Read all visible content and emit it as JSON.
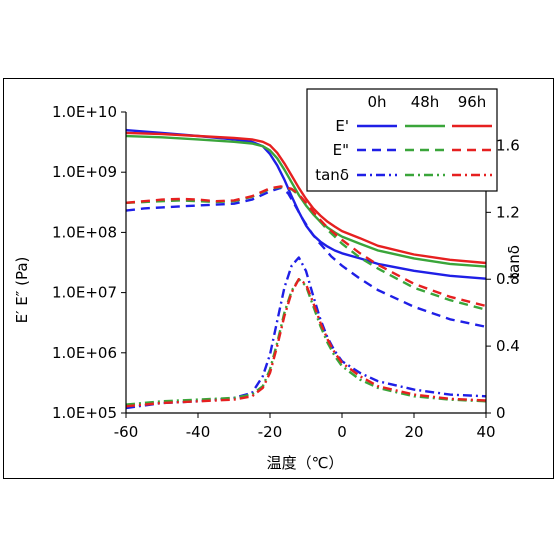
{
  "chart_data": {
    "type": "line",
    "title": "",
    "xlabel": "温度（℃）",
    "ylabel_left": "E′ E″ (Pa)",
    "ylabel_right": "tanδ",
    "xlim": [
      -60,
      40
    ],
    "ylim_left": [
      100000,
      10000000000
    ],
    "ylim_left_scale": "log",
    "ylim_right": [
      0,
      1.8
    ],
    "x_ticks": [
      "-60",
      "-40",
      "-20",
      "0",
      "20",
      "40"
    ],
    "y_left_ticks": [
      "1.0E+05",
      "1.0E+06",
      "1.0E+07",
      "1.0E+08",
      "1.0E+09",
      "1.0E+10"
    ],
    "y_right_ticks": [
      "0",
      "0.4",
      "0.8",
      "1.2",
      "1.6"
    ],
    "legend": {
      "placement": "top-right",
      "columns": [
        "0h",
        "48h",
        "96h"
      ],
      "rows": [
        "E'",
        "E\"",
        "tanδ"
      ]
    },
    "colors": {
      "0h": "#1f1fe6",
      "48h": "#3aa53a",
      "96h": "#e62020"
    },
    "series": [
      {
        "name": "E' 0h",
        "group": "0h",
        "kind": "E'",
        "axis": "left",
        "style": "solid",
        "points": [
          [
            -60,
            5000000000.0
          ],
          [
            -50,
            4500000000.0
          ],
          [
            -40,
            4000000000.0
          ],
          [
            -30,
            3500000000.0
          ],
          [
            -25,
            3200000000.0
          ],
          [
            -22,
            2700000000.0
          ],
          [
            -20,
            2000000000.0
          ],
          [
            -18,
            1300000000.0
          ],
          [
            -16,
            750000000.0
          ],
          [
            -14,
            400000000.0
          ],
          [
            -12,
            220000000.0
          ],
          [
            -10,
            130000000.0
          ],
          [
            -8,
            90000000.0
          ],
          [
            -6,
            70000000.0
          ],
          [
            -4,
            58000000.0
          ],
          [
            -2,
            50000000.0
          ],
          [
            0,
            45000000.0
          ],
          [
            5,
            37000000.0
          ],
          [
            10,
            30000000.0
          ],
          [
            20,
            23000000.0
          ],
          [
            30,
            19000000.0
          ],
          [
            40,
            17000000.0
          ]
        ]
      },
      {
        "name": "E' 48h",
        "group": "48h",
        "kind": "E'",
        "axis": "left",
        "style": "solid",
        "points": [
          [
            -60,
            4000000000.0
          ],
          [
            -50,
            3800000000.0
          ],
          [
            -40,
            3500000000.0
          ],
          [
            -30,
            3200000000.0
          ],
          [
            -25,
            3000000000.0
          ],
          [
            -22,
            2700000000.0
          ],
          [
            -20,
            2300000000.0
          ],
          [
            -18,
            1700000000.0
          ],
          [
            -16,
            1100000000.0
          ],
          [
            -14,
            680000000.0
          ],
          [
            -12,
            420000000.0
          ],
          [
            -10,
            280000000.0
          ],
          [
            -8,
            200000000.0
          ],
          [
            -6,
            150000000.0
          ],
          [
            -4,
            120000000.0
          ],
          [
            -2,
            100000000.0
          ],
          [
            0,
            85000000.0
          ],
          [
            5,
            65000000.0
          ],
          [
            10,
            50000000.0
          ],
          [
            20,
            37000000.0
          ],
          [
            30,
            30000000.0
          ],
          [
            40,
            27000000.0
          ]
        ]
      },
      {
        "name": "E' 96h",
        "group": "96h",
        "kind": "E'",
        "axis": "left",
        "style": "solid",
        "points": [
          [
            -60,
            4500000000.0
          ],
          [
            -50,
            4300000000.0
          ],
          [
            -40,
            4000000000.0
          ],
          [
            -30,
            3700000000.0
          ],
          [
            -25,
            3500000000.0
          ],
          [
            -22,
            3200000000.0
          ],
          [
            -20,
            2800000000.0
          ],
          [
            -18,
            2100000000.0
          ],
          [
            -16,
            1400000000.0
          ],
          [
            -14,
            880000000.0
          ],
          [
            -12,
            550000000.0
          ],
          [
            -10,
            360000000.0
          ],
          [
            -8,
            250000000.0
          ],
          [
            -6,
            190000000.0
          ],
          [
            -4,
            150000000.0
          ],
          [
            -2,
            125000000.0
          ],
          [
            0,
            105000000.0
          ],
          [
            5,
            80000000.0
          ],
          [
            10,
            60000000.0
          ],
          [
            20,
            43000000.0
          ],
          [
            30,
            35000000.0
          ],
          [
            40,
            31000000.0
          ]
        ]
      },
      {
        "name": "E\" 0h",
        "group": "0h",
        "kind": "E\"",
        "axis": "left",
        "style": "dashed",
        "points": [
          [
            -60,
            230000000.0
          ],
          [
            -55,
            250000000.0
          ],
          [
            -50,
            260000000.0
          ],
          [
            -45,
            270000000.0
          ],
          [
            -40,
            280000000.0
          ],
          [
            -35,
            290000000.0
          ],
          [
            -30,
            300000000.0
          ],
          [
            -25,
            350000000.0
          ],
          [
            -20,
            480000000.0
          ],
          [
            -17,
            550000000.0
          ],
          [
            -15,
            450000000.0
          ],
          [
            -13,
            280000000.0
          ],
          [
            -11,
            170000000.0
          ],
          [
            -9,
            110000000.0
          ],
          [
            -7,
            75000000.0
          ],
          [
            -5,
            55000000.0
          ],
          [
            -3,
            40000000.0
          ],
          [
            0,
            28000000.0
          ],
          [
            5,
            17000000.0
          ],
          [
            10,
            11000000.0
          ],
          [
            20,
            5800000.0
          ],
          [
            30,
            3600000.0
          ],
          [
            40,
            2700000.0
          ]
        ]
      },
      {
        "name": "E\" 48h",
        "group": "48h",
        "kind": "E\"",
        "axis": "left",
        "style": "dashed",
        "points": [
          [
            -60,
            310000000.0
          ],
          [
            -55,
            320000000.0
          ],
          [
            -50,
            330000000.0
          ],
          [
            -45,
            340000000.0
          ],
          [
            -40,
            330000000.0
          ],
          [
            -35,
            320000000.0
          ],
          [
            -30,
            330000000.0
          ],
          [
            -25,
            390000000.0
          ],
          [
            -20,
            530000000.0
          ],
          [
            -17,
            570000000.0
          ],
          [
            -14,
            520000000.0
          ],
          [
            -12,
            420000000.0
          ],
          [
            -10,
            300000000.0
          ],
          [
            -8,
            210000000.0
          ],
          [
            -6,
            150000000.0
          ],
          [
            -4,
            110000000.0
          ],
          [
            -2,
            85000000.0
          ],
          [
            0,
            65000000.0
          ],
          [
            5,
            38000000.0
          ],
          [
            10,
            25000000.0
          ],
          [
            20,
            12000000.0
          ],
          [
            30,
            7500000.0
          ],
          [
            40,
            5200000.0
          ]
        ]
      },
      {
        "name": "E\" 96h",
        "group": "96h",
        "kind": "E\"",
        "axis": "left",
        "style": "dashed",
        "points": [
          [
            -60,
            310000000.0
          ],
          [
            -55,
            330000000.0
          ],
          [
            -50,
            350000000.0
          ],
          [
            -45,
            360000000.0
          ],
          [
            -40,
            350000000.0
          ],
          [
            -35,
            330000000.0
          ],
          [
            -30,
            340000000.0
          ],
          [
            -25,
            400000000.0
          ],
          [
            -20,
            540000000.0
          ],
          [
            -17,
            580000000.0
          ],
          [
            -14,
            530000000.0
          ],
          [
            -12,
            430000000.0
          ],
          [
            -10,
            310000000.0
          ],
          [
            -8,
            220000000.0
          ],
          [
            -6,
            160000000.0
          ],
          [
            -4,
            120000000.0
          ],
          [
            -2,
            95000000.0
          ],
          [
            0,
            75000000.0
          ],
          [
            5,
            45000000.0
          ],
          [
            10,
            29000000.0
          ],
          [
            20,
            14000000.0
          ],
          [
            30,
            8500000.0
          ],
          [
            40,
            6000000.0
          ]
        ]
      },
      {
        "name": "tanδ 0h",
        "group": "0h",
        "kind": "tanδ",
        "axis": "right",
        "style": "dashdot",
        "points": [
          [
            -60,
            0.03
          ],
          [
            -50,
            0.06
          ],
          [
            -40,
            0.07
          ],
          [
            -30,
            0.09
          ],
          [
            -25,
            0.12
          ],
          [
            -22,
            0.22
          ],
          [
            -20,
            0.35
          ],
          [
            -18,
            0.55
          ],
          [
            -16,
            0.75
          ],
          [
            -14,
            0.88
          ],
          [
            -12,
            0.93
          ],
          [
            -10,
            0.85
          ],
          [
            -8,
            0.7
          ],
          [
            -6,
            0.56
          ],
          [
            -4,
            0.45
          ],
          [
            -2,
            0.37
          ],
          [
            0,
            0.31
          ],
          [
            5,
            0.24
          ],
          [
            10,
            0.19
          ],
          [
            20,
            0.14
          ],
          [
            30,
            0.11
          ],
          [
            40,
            0.1
          ]
        ]
      },
      {
        "name": "tanδ 48h",
        "group": "48h",
        "kind": "tanδ",
        "axis": "right",
        "style": "dashdot",
        "points": [
          [
            -60,
            0.05
          ],
          [
            -50,
            0.07
          ],
          [
            -40,
            0.08
          ],
          [
            -30,
            0.09
          ],
          [
            -25,
            0.11
          ],
          [
            -22,
            0.16
          ],
          [
            -20,
            0.26
          ],
          [
            -18,
            0.42
          ],
          [
            -16,
            0.6
          ],
          [
            -14,
            0.73
          ],
          [
            -12,
            0.8
          ],
          [
            -10,
            0.76
          ],
          [
            -8,
            0.64
          ],
          [
            -6,
            0.52
          ],
          [
            -4,
            0.42
          ],
          [
            -2,
            0.34
          ],
          [
            0,
            0.28
          ],
          [
            5,
            0.2
          ],
          [
            10,
            0.15
          ],
          [
            20,
            0.1
          ],
          [
            30,
            0.08
          ],
          [
            40,
            0.07
          ]
        ]
      },
      {
        "name": "tanδ 96h",
        "group": "96h",
        "kind": "tanδ",
        "axis": "right",
        "style": "dashdot",
        "points": [
          [
            -60,
            0.04
          ],
          [
            -50,
            0.06
          ],
          [
            -40,
            0.07
          ],
          [
            -30,
            0.08
          ],
          [
            -25,
            0.1
          ],
          [
            -22,
            0.15
          ],
          [
            -20,
            0.24
          ],
          [
            -18,
            0.4
          ],
          [
            -16,
            0.58
          ],
          [
            -14,
            0.72
          ],
          [
            -12,
            0.8
          ],
          [
            -10,
            0.77
          ],
          [
            -8,
            0.66
          ],
          [
            -6,
            0.54
          ],
          [
            -4,
            0.44
          ],
          [
            -2,
            0.36
          ],
          [
            0,
            0.3
          ],
          [
            5,
            0.22
          ],
          [
            10,
            0.16
          ],
          [
            20,
            0.11
          ],
          [
            30,
            0.085
          ],
          [
            40,
            0.075
          ]
        ]
      }
    ]
  }
}
